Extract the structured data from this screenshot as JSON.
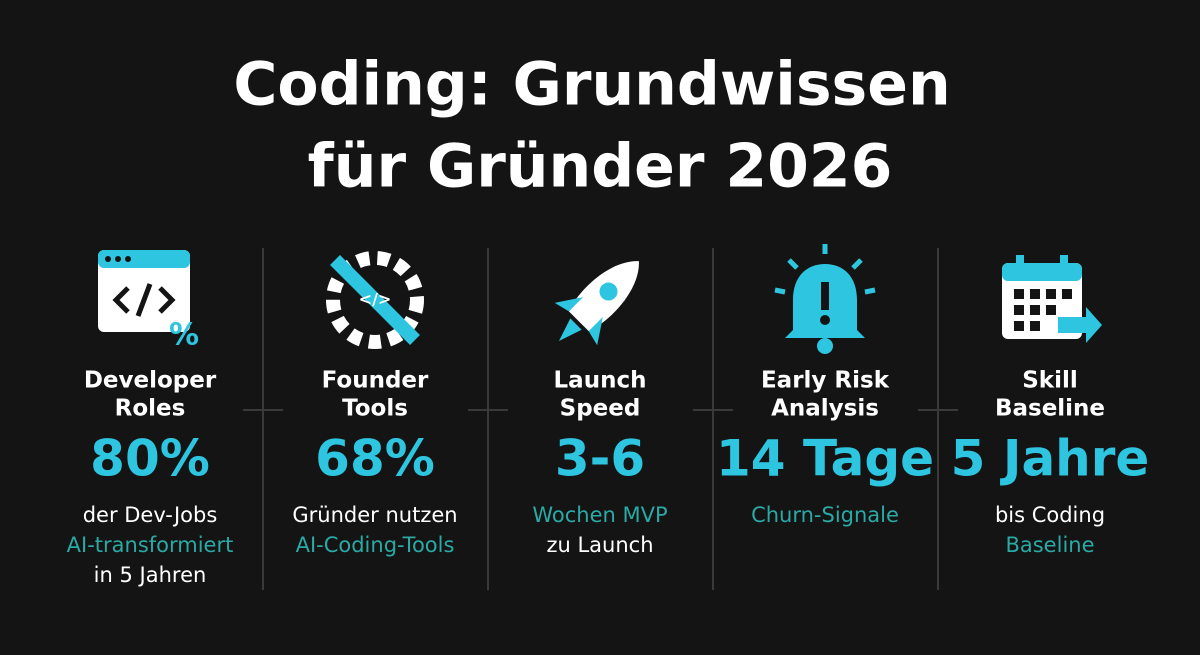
{
  "title": [
    "Coding: Grundwissen",
    "für Gründer 2026"
  ],
  "stat_color": "#2ec5e0",
  "columns": [
    {
      "label": [
        "Developer",
        "Roles"
      ],
      "stat": "80%",
      "lines": [
        {
          "text": "der Dev-Jobs",
          "color": "#ffffff"
        },
        {
          "text": "AI-transformiert",
          "color": "#2aa9a5"
        },
        {
          "text": "in 5 Jahren",
          "color": "#ffffff"
        }
      ]
    },
    {
      "label": [
        "Founder",
        "Tools"
      ],
      "stat": "68%",
      "lines": [
        {
          "text": "Gründer nutzen",
          "color": "#ffffff"
        },
        {
          "text": "AI-Coding-Tools",
          "color": "#2aa9a5"
        }
      ]
    },
    {
      "label": [
        "Launch",
        "Speed"
      ],
      "stat": "3-6",
      "lines": [
        {
          "text": "Wochen MVP",
          "color": "#2aa9a5"
        },
        {
          "text": "zu Launch",
          "color": "#ffffff"
        }
      ]
    },
    {
      "label": [
        "Early Risk",
        "Analysis"
      ],
      "stat": "14 Tage",
      "lines": [
        {
          "text": "Churn-Signale",
          "color": "#2aa9a5"
        }
      ]
    },
    {
      "label": [
        "Skill",
        "Baseline"
      ],
      "stat": "5 Jahre",
      "lines": [
        {
          "text": "bis Coding",
          "color": "#ffffff"
        },
        {
          "text": "Baseline",
          "color": "#2aa9a5"
        }
      ]
    }
  ]
}
